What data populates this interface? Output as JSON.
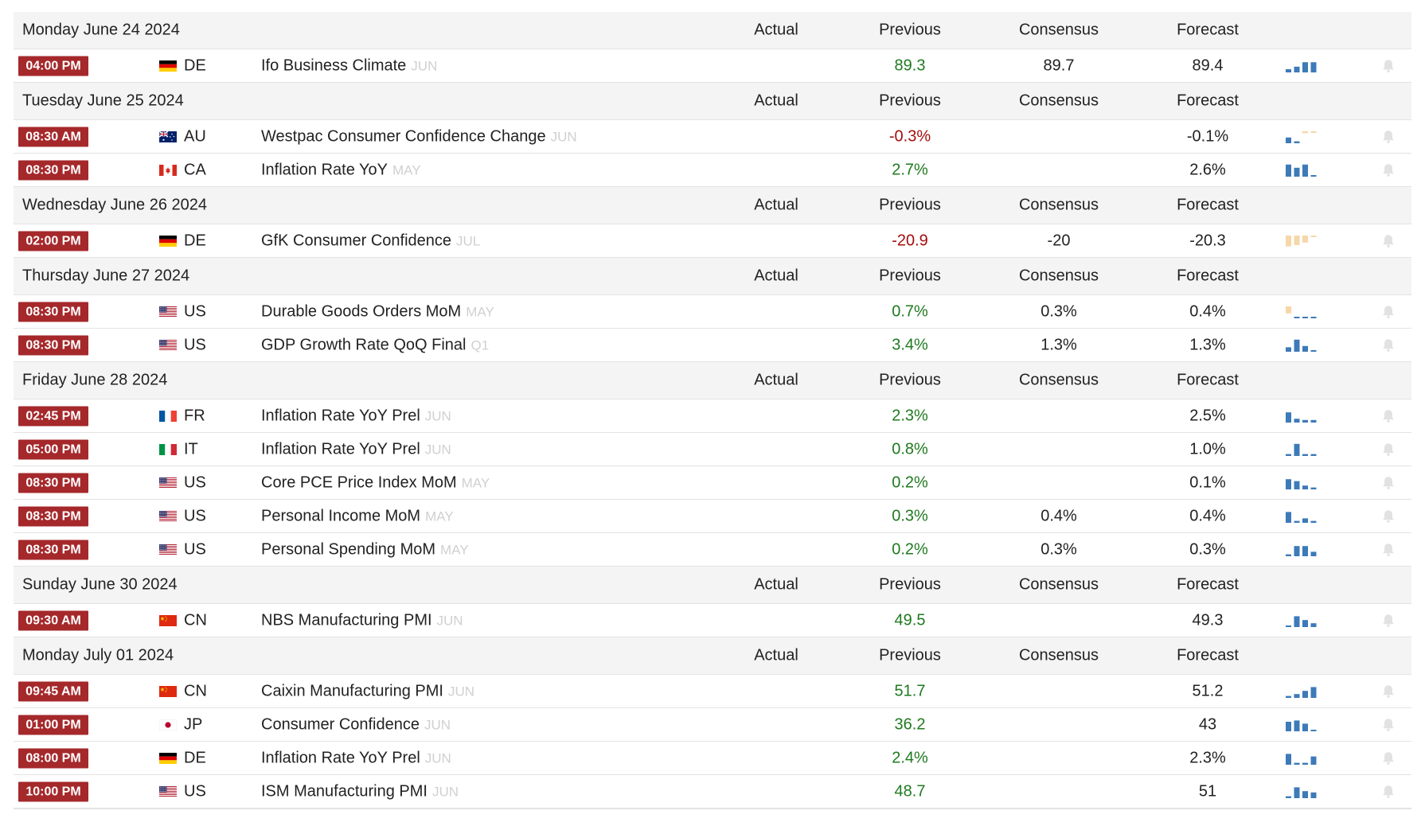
{
  "colors": {
    "badge": "#a5282b",
    "positive": "#1f7a1f",
    "negative": "#a50d0d",
    "spark_blue": "#3d7ab8",
    "spark_tan": "#f5d7a8",
    "spark_teal_dash": "#7fb0d4",
    "ref_text": "#d0d0d0",
    "header_bg": "#f4f4f4"
  },
  "columns": {
    "actual": "Actual",
    "previous": "Previous",
    "consensus": "Consensus",
    "forecast": "Forecast"
  },
  "days": [
    {
      "date": "Monday June 24 2024",
      "events": [
        {
          "time": "04:00 PM",
          "country": "DE",
          "flag": "de-flag-icon",
          "name": "Ifo Business Climate",
          "ref": "JUN",
          "actual": "",
          "previous": "89.3",
          "previous_trend": "positive",
          "consensus": "89.7",
          "forecast": "89.4",
          "spark_icon": "bar-trend-icon",
          "spark": [
            0.25,
            0.45,
            0.8,
            0.8
          ]
        }
      ]
    },
    {
      "date": "Tuesday June 25 2024",
      "events": [
        {
          "time": "08:30 AM",
          "country": "AU",
          "flag": "au-flag-icon",
          "name": "Westpac Consumer Confidence Change",
          "ref": "JUN",
          "actual": "",
          "previous": "-0.3%",
          "previous_trend": "negative",
          "consensus": "",
          "forecast": "-0.1%",
          "spark_icon": "bar-trend-icon",
          "spark": [
            0.45,
            0.15,
            -0.15,
            -0.1
          ]
        },
        {
          "time": "08:30 PM",
          "country": "CA",
          "flag": "ca-flag-icon",
          "name": "Inflation Rate YoY",
          "ref": "MAY",
          "actual": "",
          "previous": "2.7%",
          "previous_trend": "positive",
          "consensus": "",
          "forecast": "2.6%",
          "spark_icon": "bar-trend-icon",
          "spark": [
            0.95,
            0.7,
            0.95,
            0.1
          ]
        }
      ]
    },
    {
      "date": "Wednesday June 26 2024",
      "events": [
        {
          "time": "02:00 PM",
          "country": "DE",
          "flag": "de-flag-icon",
          "name": "GfK Consumer Confidence",
          "ref": "JUL",
          "actual": "",
          "previous": "-20.9",
          "previous_trend": "negative",
          "consensus": "-20",
          "forecast": "-20.3",
          "spark_icon": "bar-trend-icon",
          "spark": [
            -0.85,
            -0.75,
            -0.55,
            -0.1
          ]
        }
      ]
    },
    {
      "date": "Thursday June 27 2024",
      "events": [
        {
          "time": "08:30 PM",
          "country": "US",
          "flag": "us-flag-icon",
          "name": "Durable Goods Orders MoM",
          "ref": "MAY",
          "actual": "",
          "previous": "0.7%",
          "previous_trend": "positive",
          "consensus": "0.3%",
          "forecast": "0.4%",
          "spark_icon": "bar-trend-icon",
          "spark": [
            -0.55,
            0.05,
            0.05,
            0.05
          ]
        },
        {
          "time": "08:30 PM",
          "country": "US",
          "flag": "us-flag-icon",
          "name": "GDP Growth Rate QoQ Final",
          "ref": "Q1",
          "actual": "",
          "previous": "3.4%",
          "previous_trend": "positive",
          "consensus": "1.3%",
          "forecast": "1.3%",
          "spark_icon": "bar-trend-icon",
          "spark": [
            0.35,
            0.95,
            0.45,
            0.1
          ]
        }
      ]
    },
    {
      "date": "Friday June 28 2024",
      "events": [
        {
          "time": "02:45 PM",
          "country": "FR",
          "flag": "fr-flag-icon",
          "name": "Inflation Rate YoY Prel",
          "ref": "JUN",
          "actual": "",
          "previous": "2.3%",
          "previous_trend": "positive",
          "consensus": "",
          "forecast": "2.5%",
          "spark_icon": "bar-trend-icon",
          "spark": [
            0.8,
            0.3,
            0.2,
            0.2
          ]
        },
        {
          "time": "05:00 PM",
          "country": "IT",
          "flag": "it-flag-icon",
          "name": "Inflation Rate YoY Prel",
          "ref": "JUN",
          "actual": "",
          "previous": "0.8%",
          "previous_trend": "positive",
          "consensus": "",
          "forecast": "1.0%",
          "spark_icon": "bar-trend-icon",
          "spark": [
            0.15,
            0.95,
            0.15,
            0.15
          ]
        },
        {
          "time": "08:30 PM",
          "country": "US",
          "flag": "us-flag-icon",
          "name": "Core PCE Price Index MoM",
          "ref": "MAY",
          "actual": "",
          "previous": "0.2%",
          "previous_trend": "positive",
          "consensus": "",
          "forecast": "0.1%",
          "spark_icon": "bar-trend-icon",
          "spark": [
            0.8,
            0.65,
            0.3,
            0.15
          ]
        },
        {
          "time": "08:30 PM",
          "country": "US",
          "flag": "us-flag-icon",
          "name": "Personal Income MoM",
          "ref": "MAY",
          "actual": "",
          "previous": "0.3%",
          "previous_trend": "positive",
          "consensus": "0.4%",
          "forecast": "0.4%",
          "spark_icon": "bar-trend-icon",
          "spark": [
            0.85,
            0.15,
            0.35,
            0.15
          ]
        },
        {
          "time": "08:30 PM",
          "country": "US",
          "flag": "us-flag-icon",
          "name": "Personal Spending MoM",
          "ref": "MAY",
          "actual": "",
          "previous": "0.2%",
          "previous_trend": "positive",
          "consensus": "0.3%",
          "forecast": "0.3%",
          "spark_icon": "bar-trend-icon",
          "spark": [
            0.15,
            0.8,
            0.8,
            0.35
          ]
        }
      ]
    },
    {
      "date": "Sunday June 30 2024",
      "events": [
        {
          "time": "09:30 AM",
          "country": "CN",
          "flag": "cn-flag-icon",
          "name": "NBS Manufacturing PMI",
          "ref": "JUN",
          "actual": "",
          "previous": "49.5",
          "previous_trend": "positive",
          "consensus": "",
          "forecast": "49.3",
          "spark_icon": "bar-trend-icon",
          "spark": [
            0.1,
            0.85,
            0.55,
            0.3
          ]
        }
      ]
    },
    {
      "date": "Monday July 01 2024",
      "events": [
        {
          "time": "09:45 AM",
          "country": "CN",
          "flag": "cn-flag-icon",
          "name": "Caixin Manufacturing PMI",
          "ref": "JUN",
          "actual": "",
          "previous": "51.7",
          "previous_trend": "positive",
          "consensus": "",
          "forecast": "51.2",
          "spark_icon": "bar-trend-icon",
          "spark": [
            0.15,
            0.3,
            0.55,
            0.85
          ]
        },
        {
          "time": "01:00 PM",
          "country": "JP",
          "flag": "jp-flag-icon",
          "name": "Consumer Confidence",
          "ref": "JUN",
          "actual": "",
          "previous": "36.2",
          "previous_trend": "positive",
          "consensus": "",
          "forecast": "43",
          "spark_icon": "bar-trend-icon",
          "spark": [
            0.75,
            0.85,
            0.6,
            0.1
          ]
        },
        {
          "time": "08:00 PM",
          "country": "DE",
          "flag": "de-flag-icon",
          "name": "Inflation Rate YoY Prel",
          "ref": "JUN",
          "actual": "",
          "previous": "2.4%",
          "previous_trend": "positive",
          "consensus": "",
          "forecast": "2.3%",
          "spark_icon": "bar-trend-icon",
          "spark": [
            0.85,
            0.15,
            0.15,
            0.65
          ]
        },
        {
          "time": "10:00 PM",
          "country": "US",
          "flag": "us-flag-icon",
          "name": "ISM Manufacturing PMI",
          "ref": "JUN",
          "actual": "",
          "previous": "48.7",
          "previous_trend": "positive",
          "consensus": "",
          "forecast": "51",
          "spark_icon": "bar-trend-icon",
          "spark": [
            0.15,
            0.85,
            0.55,
            0.45
          ]
        }
      ]
    }
  ]
}
